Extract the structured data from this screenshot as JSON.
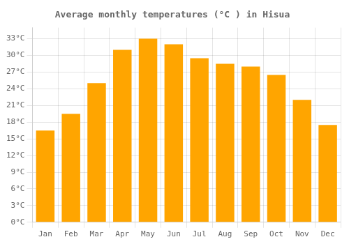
{
  "chart_data": {
    "type": "bar",
    "title": "Average monthly temperatures (°C ) in Hisua",
    "categories": [
      "Jan",
      "Feb",
      "Mar",
      "Apr",
      "May",
      "Jun",
      "Jul",
      "Aug",
      "Sep",
      "Oct",
      "Nov",
      "Dec"
    ],
    "values": [
      16.5,
      19.5,
      25.0,
      31.0,
      33.0,
      32.0,
      29.5,
      28.5,
      28.0,
      26.5,
      22.0,
      17.5
    ],
    "color": "#FFA500",
    "ylim": [
      0,
      35
    ],
    "yticks": [
      {
        "value": 0,
        "label": "0°C"
      },
      {
        "value": 3,
        "label": "3°C"
      },
      {
        "value": 6,
        "label": "6°C"
      },
      {
        "value": 9,
        "label": "9°C"
      },
      {
        "value": 12,
        "label": "12°C"
      },
      {
        "value": 15,
        "label": "15°C"
      },
      {
        "value": 18,
        "label": "18°C"
      },
      {
        "value": 21,
        "label": "21°C"
      },
      {
        "value": 24,
        "label": "24°C"
      },
      {
        "value": 27,
        "label": "27°C"
      },
      {
        "value": 30,
        "label": "30°C"
      },
      {
        "value": 33,
        "label": "33°C"
      }
    ],
    "grid": true
  }
}
